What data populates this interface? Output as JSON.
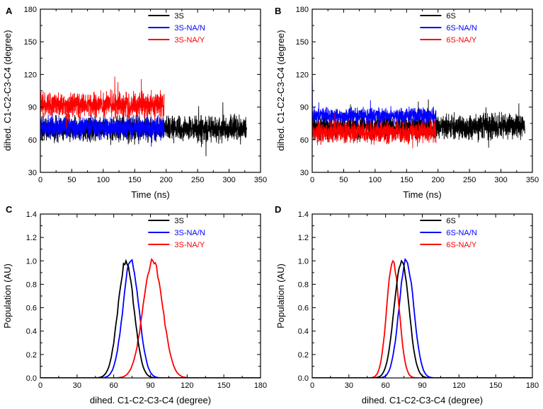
{
  "chart_data": [
    {
      "panel": "A",
      "type": "line",
      "kind": "timeseries",
      "xlabel": "Time (ns)",
      "ylabel": "dihed. C1-C2-C3-C4 (degree)",
      "xlim": [
        0,
        350
      ],
      "ylim": [
        30,
        180
      ],
      "xticks": [
        "0",
        "50",
        "100",
        "150",
        "200",
        "250",
        "300",
        "350"
      ],
      "yticks": [
        "30",
        "60",
        "90",
        "120",
        "150",
        "180"
      ],
      "legend_position": "top-right",
      "series": [
        {
          "name": "3S",
          "color": "#000000",
          "t_end": 328,
          "mean": 70,
          "noise": 8
        },
        {
          "name": "3S-NA/N",
          "color": "#0000ff",
          "t_end": 197,
          "mean": 71,
          "noise": 7
        },
        {
          "name": "3S-NA/Y",
          "color": "#ff0000",
          "t_end": 197,
          "mean": 92,
          "noise": 8
        }
      ]
    },
    {
      "panel": "B",
      "type": "line",
      "kind": "timeseries",
      "xlabel": "Time (ns)",
      "ylabel": "dihed. C1-C2-C3-C4 (degree)",
      "xlim": [
        0,
        350
      ],
      "ylim": [
        30,
        180
      ],
      "xticks": [
        "0",
        "50",
        "100",
        "150",
        "200",
        "250",
        "300",
        "350"
      ],
      "yticks": [
        "30",
        "60",
        "90",
        "120",
        "150",
        "180"
      ],
      "legend_position": "top-right",
      "series": [
        {
          "name": "6S",
          "color": "#000000",
          "t_end": 338,
          "mean": 72,
          "noise": 8
        },
        {
          "name": "6S-NA/N",
          "color": "#0000ff",
          "t_end": 197,
          "mean": 82,
          "noise": 5,
          "start_spike": 131
        },
        {
          "name": "6S-NA/Y",
          "color": "#ff0000",
          "t_end": 197,
          "mean": 67,
          "noise": 7,
          "start_spike": 88
        }
      ]
    },
    {
      "panel": "C",
      "type": "line",
      "kind": "distribution",
      "xlabel": "dihed. C1-C2-C3-C4 (degree)",
      "ylabel": "Population (AU)",
      "xlim": [
        0,
        180
      ],
      "ylim": [
        0,
        1.4
      ],
      "xticks": [
        "0",
        "30",
        "60",
        "90",
        "120",
        "150",
        "180"
      ],
      "yticks": [
        "0.0",
        "0.2",
        "0.4",
        "0.6",
        "0.8",
        "1.0",
        "1.2",
        "1.4"
      ],
      "legend_position": "top-right",
      "series": [
        {
          "name": "3S",
          "color": "#000000",
          "peak": 70,
          "sigma": 6.5
        },
        {
          "name": "3S-NA/N",
          "color": "#0000ff",
          "peak": 74,
          "sigma": 6.5
        },
        {
          "name": "3S-NA/Y",
          "color": "#ff0000",
          "peak": 92,
          "sigma": 8
        }
      ]
    },
    {
      "panel": "D",
      "type": "line",
      "kind": "distribution",
      "xlabel": "dihed. C1-C2-C3-C4 (degree)",
      "ylabel": "Population (AU)",
      "xlim": [
        0,
        180
      ],
      "ylim": [
        0,
        1.4
      ],
      "xticks": [
        "0",
        "30",
        "60",
        "90",
        "120",
        "150",
        "180"
      ],
      "yticks": [
        "0.0",
        "0.2",
        "0.4",
        "0.6",
        "0.8",
        "1.0",
        "1.2",
        "1.4"
      ],
      "legend_position": "top-right",
      "series": [
        {
          "name": "6S",
          "color": "#000000",
          "peak": 73,
          "sigma": 6
        },
        {
          "name": "6S-NA/N",
          "color": "#0000ff",
          "peak": 77,
          "sigma": 6
        },
        {
          "name": "6S-NA/Y",
          "color": "#ff0000",
          "peak": 66,
          "sigma": 5
        }
      ]
    }
  ]
}
